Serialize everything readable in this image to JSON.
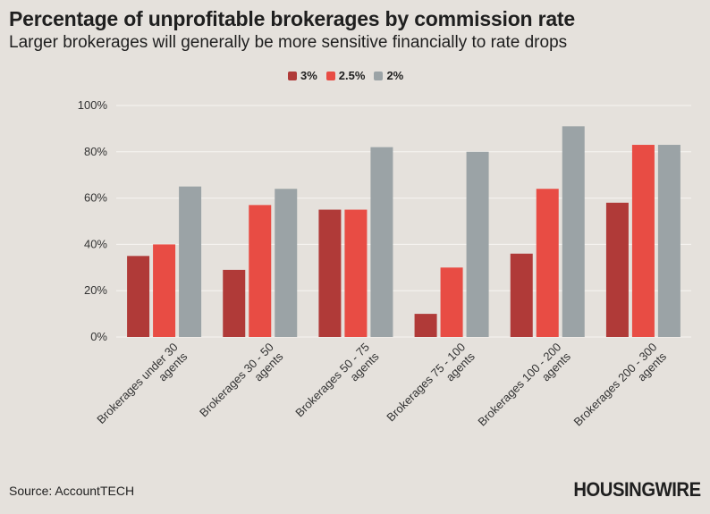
{
  "header": {
    "title": "Percentage of unprofitable brokerages by commission rate",
    "subtitle": "Larger brokerages will generally be more sensitive financially to rate drops"
  },
  "legend": [
    {
      "label": "3%",
      "color": "#b03a38"
    },
    {
      "label": "2.5%",
      "color": "#e84c44"
    },
    {
      "label": "2%",
      "color": "#9ba3a6"
    }
  ],
  "chart_data": {
    "type": "bar",
    "title": "Percentage of unprofitable brokerages by commission rate",
    "subtitle": "Larger brokerages will generally be more sensitive financially to rate drops",
    "categories": [
      [
        "Brokerages under 30",
        "agents"
      ],
      [
        "Brokerages 30 - 50",
        "agents"
      ],
      [
        "Brokerages 50 - 75",
        "agents"
      ],
      [
        "Brokerages 75 - 100",
        "agents"
      ],
      [
        "Brokerages 100 - 200",
        "agents"
      ],
      [
        "Brokerages 200 - 300",
        "agents"
      ]
    ],
    "series": [
      {
        "name": "3%",
        "color": "#b03a38",
        "values": [
          35,
          29,
          55,
          10,
          36,
          58
        ]
      },
      {
        "name": "2.5%",
        "color": "#e84c44",
        "values": [
          40,
          57,
          55,
          30,
          64,
          83
        ]
      },
      {
        "name": "2%",
        "color": "#9ba3a6",
        "values": [
          65,
          64,
          82,
          80,
          91,
          83
        ]
      }
    ],
    "yticks": [
      "0%",
      "20%",
      "40%",
      "60%",
      "80%",
      "100%"
    ],
    "ylim": [
      0,
      100
    ],
    "xlabel": "",
    "ylabel": "",
    "grid": true,
    "legend_position": "top-center"
  },
  "footer": {
    "source": "Source: AccountTECH",
    "logo": "HOUSINGWIRE"
  }
}
